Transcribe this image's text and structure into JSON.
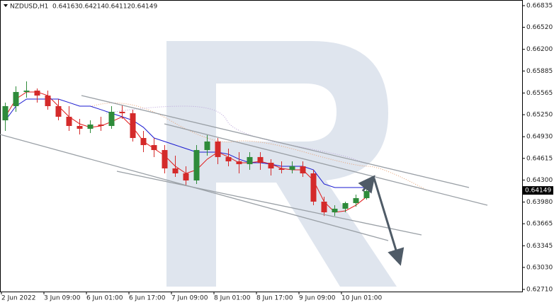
{
  "chart_data": {
    "type": "candlestick",
    "symbol": "NZDUSD,H1",
    "ohlc": [
      0.64163,
      0.64214,
      0.64112,
      0.64149
    ],
    "current_price": 0.64149,
    "categories": [
      "2 Jun 2022",
      null,
      null,
      null,
      "3 Jun 09:00",
      null,
      null,
      null,
      "6 Jun 01:00",
      null,
      null,
      null,
      "6 Jun 17:00",
      null,
      null,
      null,
      "7 Jun 09:00",
      null,
      null,
      null,
      "8 Jun 01:00",
      null,
      null,
      null,
      "8 Jun 17:00",
      null,
      null,
      null,
      "9 Jun 09:00",
      null,
      null,
      null,
      "10 Jun 01:00",
      null,
      null
    ],
    "candles": [
      {
        "open": 0.65168,
        "high": 0.65426,
        "low": 0.65014,
        "close": 0.65374
      },
      {
        "open": 0.65374,
        "high": 0.65662,
        "low": 0.65292,
        "close": 0.6558
      },
      {
        "open": 0.6558,
        "high": 0.65734,
        "low": 0.65498,
        "close": 0.656
      },
      {
        "open": 0.656,
        "high": 0.65631,
        "low": 0.65426,
        "close": 0.65528
      },
      {
        "open": 0.65528,
        "high": 0.656,
        "low": 0.65323,
        "close": 0.65374
      },
      {
        "open": 0.65374,
        "high": 0.65477,
        "low": 0.65168,
        "close": 0.6522
      },
      {
        "open": 0.6522,
        "high": 0.65374,
        "low": 0.65014,
        "close": 0.65086
      },
      {
        "open": 0.65086,
        "high": 0.65189,
        "low": 0.64963,
        "close": 0.65045
      },
      {
        "open": 0.65045,
        "high": 0.65168,
        "low": 0.64983,
        "close": 0.65107
      },
      {
        "open": 0.65107,
        "high": 0.6522,
        "low": 0.65014,
        "close": 0.65086
      },
      {
        "open": 0.65086,
        "high": 0.65374,
        "low": 0.65045,
        "close": 0.65292
      },
      {
        "open": 0.65292,
        "high": 0.65395,
        "low": 0.65189,
        "close": 0.65271
      },
      {
        "open": 0.65271,
        "high": 0.65323,
        "low": 0.6486,
        "close": 0.64911
      },
      {
        "open": 0.64911,
        "high": 0.65014,
        "low": 0.64706,
        "close": 0.64808
      },
      {
        "open": 0.64808,
        "high": 0.64911,
        "low": 0.64634,
        "close": 0.64736
      },
      {
        "open": 0.64736,
        "high": 0.64808,
        "low": 0.64397,
        "close": 0.64469
      },
      {
        "open": 0.64469,
        "high": 0.64654,
        "low": 0.64345,
        "close": 0.64397
      },
      {
        "open": 0.64397,
        "high": 0.645,
        "low": 0.64222,
        "close": 0.64294
      },
      {
        "open": 0.64294,
        "high": 0.64808,
        "low": 0.64243,
        "close": 0.64736
      },
      {
        "open": 0.64736,
        "high": 0.64963,
        "low": 0.64654,
        "close": 0.6486
      },
      {
        "open": 0.6486,
        "high": 0.64911,
        "low": 0.64531,
        "close": 0.64634
      },
      {
        "open": 0.64634,
        "high": 0.64757,
        "low": 0.645,
        "close": 0.64572
      },
      {
        "open": 0.64572,
        "high": 0.64706,
        "low": 0.64397,
        "close": 0.64531
      },
      {
        "open": 0.64531,
        "high": 0.64706,
        "low": 0.64448,
        "close": 0.64634
      },
      {
        "open": 0.64634,
        "high": 0.64706,
        "low": 0.64448,
        "close": 0.64551
      },
      {
        "open": 0.64551,
        "high": 0.64603,
        "low": 0.64366,
        "close": 0.64469
      },
      {
        "open": 0.64469,
        "high": 0.64572,
        "low": 0.64397,
        "close": 0.64448
      },
      {
        "open": 0.64448,
        "high": 0.64572,
        "low": 0.64397,
        "close": 0.645
      },
      {
        "open": 0.645,
        "high": 0.64572,
        "low": 0.64345,
        "close": 0.64397
      },
      {
        "open": 0.64397,
        "high": 0.64448,
        "low": 0.63934,
        "close": 0.63986
      },
      {
        "open": 0.63986,
        "high": 0.64058,
        "low": 0.63779,
        "close": 0.63831
      },
      {
        "open": 0.63831,
        "high": 0.63934,
        "low": 0.63779,
        "close": 0.63883
      },
      {
        "open": 0.63883,
        "high": 0.63986,
        "low": 0.63831,
        "close": 0.63965
      },
      {
        "open": 0.63965,
        "high": 0.64088,
        "low": 0.63914,
        "close": 0.64037
      },
      {
        "open": 0.64037,
        "high": 0.64212,
        "low": 0.64016,
        "close": 0.6414
      }
    ],
    "up_color": "#2e8b3a",
    "down_color": "#d42a2a",
    "series": [
      {
        "color": "#e01818",
        "values": [
          0.6522,
          0.65477,
          0.6558,
          0.6558,
          0.65528,
          0.65374,
          0.6522,
          0.65117,
          0.65066,
          0.65086,
          0.65148,
          0.6522,
          0.65066,
          0.6486,
          0.64757,
          0.64654,
          0.645,
          0.64397,
          0.64448,
          0.64603,
          0.64706,
          0.64634,
          0.64551,
          0.64551,
          0.64572,
          0.64531,
          0.64469,
          0.64448,
          0.64448,
          0.64294,
          0.63986,
          0.63831,
          0.63852,
          0.63934,
          0.64058
        ]
      },
      {
        "color": "#1a1ad0",
        "values": [
          0.65168,
          0.65374,
          0.65477,
          0.65477,
          0.65477,
          0.65477,
          0.65426,
          0.65374,
          0.65374,
          0.65323,
          0.65271,
          0.6522,
          0.65168,
          0.65066,
          0.64911,
          0.6486,
          0.64808,
          0.64757,
          0.64706,
          0.64706,
          0.64706,
          0.64675,
          0.64603,
          0.64551,
          0.64551,
          0.64531,
          0.645,
          0.645,
          0.645,
          0.64448,
          0.64243,
          0.64191,
          0.64191,
          0.64191,
          0.64191
        ]
      }
    ],
    "ylim": [
      0.62679,
      0.66917
    ],
    "yticks": [
      0.66835,
      {
        "value": 0.6652,
        "label": "0.66520"
      },
      {
        "value": 0.662,
        "label": "0.66200"
      },
      0.65885,
      0.65565,
      {
        "value": 0.6525,
        "label": "0.65250"
      },
      {
        "value": 0.6493,
        "label": "0.64930"
      },
      0.64615,
      {
        "value": 0.643,
        "label": "0.64300"
      },
      {
        "value": 0.6398,
        "label": "0.63980"
      },
      0.63665,
      0.63345,
      {
        "value": 0.6303,
        "label": "0.63030"
      },
      {
        "value": 0.6271,
        "label": "0.62710"
      }
    ]
  }
}
